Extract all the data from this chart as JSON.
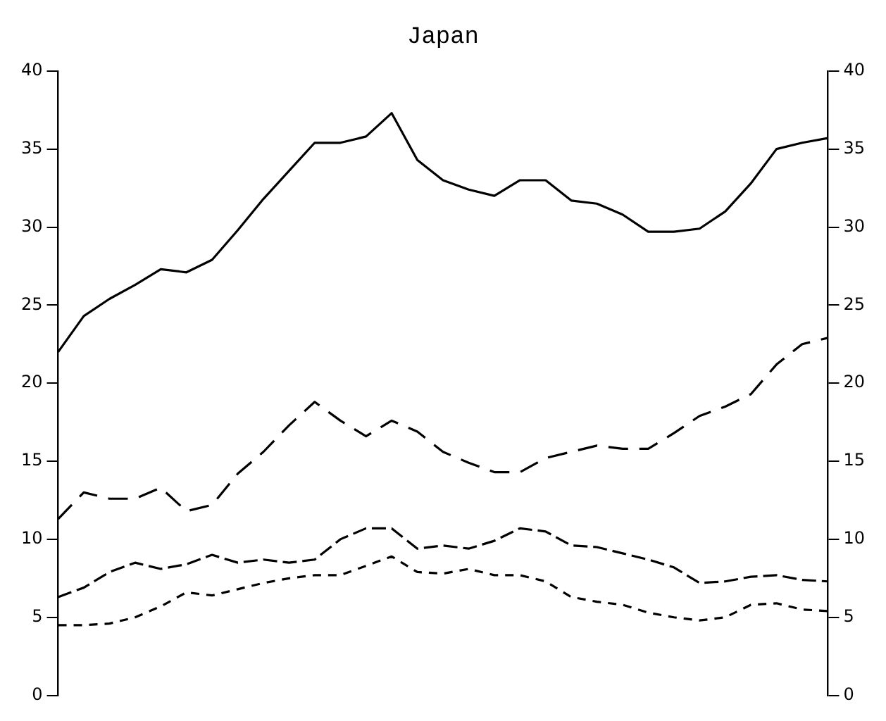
{
  "chart_data": {
    "type": "line",
    "title": "Japan",
    "categories": [
      null,
      null,
      null,
      null,
      null,
      null,
      null,
      null,
      null,
      null,
      null,
      null,
      null,
      null,
      null,
      null,
      null,
      null,
      null,
      null,
      null,
      null,
      null,
      null,
      null,
      null,
      null,
      null,
      null,
      null,
      null
    ],
    "series": [
      {
        "color": "#000000",
        "line_style": "solid",
        "values": [
          22,
          24.3,
          25.4,
          26.3,
          27.3,
          27.1,
          27.9,
          29.8,
          31.8,
          33.6,
          35.4,
          35.4,
          35.8,
          37.3,
          34.3,
          33,
          32.4,
          32,
          33,
          33,
          31.7,
          31.5,
          30.8,
          29.7,
          29.7,
          29.9,
          31,
          32.8,
          35,
          35.4,
          35.7
        ]
      },
      {
        "color": "#000000",
        "line_style": "dashed",
        "values": [
          11.3,
          13,
          12.6,
          12.6,
          13.3,
          11.8,
          12.2,
          14.2,
          15.6,
          17.3,
          18.8,
          17.6,
          16.6,
          17.6,
          16.9,
          15.6,
          14.9,
          14.3,
          14.3,
          15.2,
          15.6,
          16,
          15.8,
          15.8,
          16.8,
          17.9,
          18.5,
          19.3,
          21.2,
          22.5,
          22.9
        ]
      },
      {
        "color": "#000000",
        "line_style": "dashed",
        "values": [
          6.3,
          6.9,
          7.9,
          8.5,
          8.1,
          8.4,
          9,
          8.5,
          8.7,
          8.5,
          8.7,
          10,
          10.7,
          10.7,
          9.4,
          9.6,
          9.4,
          9.9,
          10.7,
          10.5,
          9.6,
          9.5,
          9.1,
          8.7,
          8.2,
          7.2,
          7.3,
          7.6,
          7.7,
          7.4,
          7.3
        ]
      },
      {
        "color": "#000000",
        "line_style": "dashed",
        "values": [
          4.5,
          4.5,
          4.6,
          5,
          5.7,
          6.6,
          6.4,
          6.8,
          7.2,
          7.5,
          7.7,
          7.7,
          8.3,
          8.9,
          7.9,
          7.8,
          8.1,
          7.7,
          7.7,
          7.3,
          6.3,
          6,
          5.8,
          5.3,
          5,
          4.8,
          5,
          5.8,
          5.9,
          5.5,
          5.4
        ]
      }
    ],
    "ylim": [
      0,
      40
    ],
    "yticks": [
      0,
      5,
      10,
      15,
      20,
      25,
      30,
      35,
      40
    ],
    "y2lim": [
      0,
      40
    ],
    "y2ticks": [
      0,
      5,
      10,
      15,
      20,
      25,
      30,
      35,
      40
    ],
    "grid": false,
    "legend": false,
    "marker": "none"
  }
}
